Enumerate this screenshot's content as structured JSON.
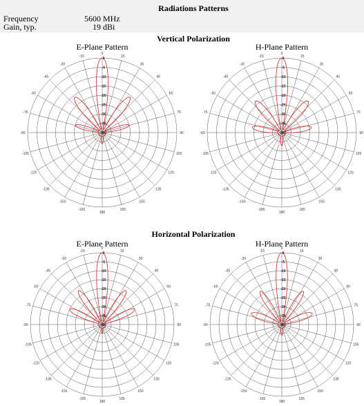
{
  "header": {
    "title": "Radiations Patterns",
    "specs": [
      [
        "Frequency",
        "5600 MHz"
      ],
      [
        "Gain, typ.",
        "19 dBi"
      ]
    ]
  },
  "sections": [
    {
      "title": "Vertical Polarization",
      "plots": [
        {
          "title": "E-Plane Pattern"
        },
        {
          "title": "H-Plane Pattern"
        }
      ]
    },
    {
      "title": "Horizontal Polarization",
      "plots": [
        {
          "title": "E-Plane Pattern"
        },
        {
          "title": "H-Plane Pattern"
        }
      ]
    }
  ],
  "polar": {
    "angle_labels": [
      0,
      15,
      30,
      45,
      60,
      75,
      90,
      105,
      120,
      135,
      150,
      165,
      180,
      -165,
      -150,
      -135,
      -120,
      -105,
      -90,
      -75,
      -60,
      -45,
      -30,
      -15
    ],
    "radial_labels": [
      0,
      -5,
      -10,
      -15,
      -20,
      -25,
      -30,
      -35,
      -40
    ]
  }
}
